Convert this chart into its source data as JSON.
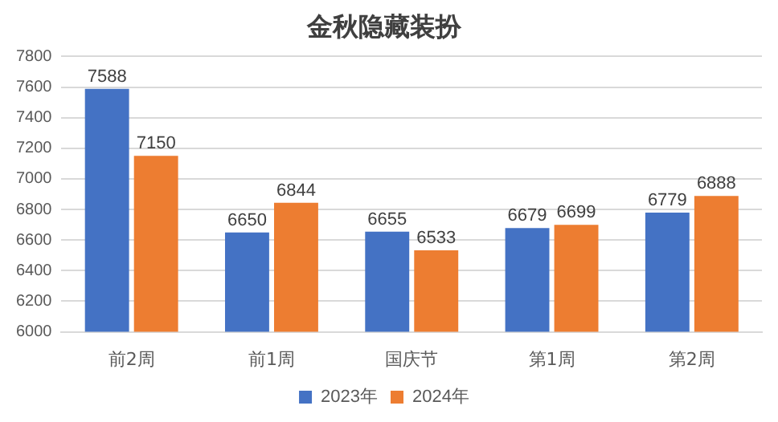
{
  "chart_data": {
    "type": "bar",
    "title": "金秋隐藏装扮",
    "categories": [
      "前2周",
      "前1周",
      "国庆节",
      "第1周",
      "第2周"
    ],
    "series": [
      {
        "name": "2023年",
        "color": "#4472c4",
        "values": [
          7588,
          6650,
          6655,
          6679,
          6779
        ]
      },
      {
        "name": "2024年",
        "color": "#ed7d31",
        "values": [
          7150,
          6844,
          6533,
          6699,
          6888
        ]
      }
    ],
    "ylim": [
      6000,
      7800
    ],
    "yticks": [
      6000,
      6200,
      6400,
      6600,
      6800,
      7000,
      7200,
      7400,
      7600,
      7800
    ],
    "grid": "y",
    "legend": "bottom",
    "data_labels": true
  }
}
